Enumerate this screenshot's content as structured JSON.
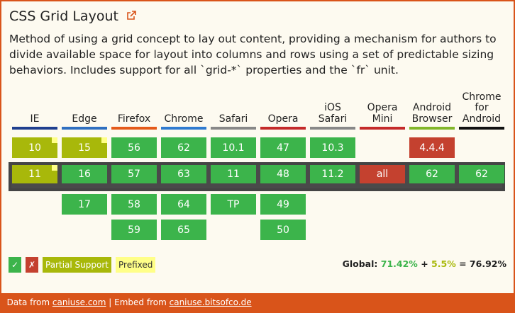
{
  "header": {
    "title": "CSS Grid Layout",
    "description": "Method of using a grid concept to lay out content, providing a mechanism for authors to divide available space for layout into columns and rows using a set of predictable sizing behaviors. Includes support for all `grid-*` properties and the `fr` unit."
  },
  "current_row": 1,
  "browsers": [
    {
      "name": [
        "IE"
      ],
      "color": "#1f3f8f",
      "cells": [
        {
          "text": "10",
          "color": "#a8b80a",
          "prefixed": true
        },
        {
          "text": "11",
          "color": "#a8b80a",
          "prefixed": true
        },
        null,
        null
      ]
    },
    {
      "name": [
        "Edge"
      ],
      "color": "#2f6fc0",
      "cells": [
        {
          "text": "15",
          "color": "#a8b80a",
          "prefixed": true
        },
        {
          "text": "16",
          "color": "#3cb44b"
        },
        {
          "text": "17",
          "color": "#3cb44b"
        },
        null
      ]
    },
    {
      "name": [
        "Firefox"
      ],
      "color": "#e45a1a",
      "cells": [
        {
          "text": "56",
          "color": "#3cb44b"
        },
        {
          "text": "57",
          "color": "#3cb44b"
        },
        {
          "text": "58",
          "color": "#3cb44b"
        },
        {
          "text": "59",
          "color": "#3cb44b"
        }
      ]
    },
    {
      "name": [
        "Chrome"
      ],
      "color": "#2f7bd0",
      "cells": [
        {
          "text": "62",
          "color": "#3cb44b"
        },
        {
          "text": "63",
          "color": "#3cb44b"
        },
        {
          "text": "64",
          "color": "#3cb44b"
        },
        {
          "text": "65",
          "color": "#3cb44b"
        }
      ]
    },
    {
      "name": [
        "Safari"
      ],
      "color": "#888888",
      "cells": [
        {
          "text": "10.1",
          "color": "#3cb44b"
        },
        {
          "text": "11",
          "color": "#3cb44b"
        },
        {
          "text": "TP",
          "color": "#3cb44b"
        },
        null
      ]
    },
    {
      "name": [
        "Opera"
      ],
      "color": "#c42a2a",
      "cells": [
        {
          "text": "47",
          "color": "#3cb44b"
        },
        {
          "text": "48",
          "color": "#3cb44b"
        },
        {
          "text": "49",
          "color": "#3cb44b"
        },
        {
          "text": "50",
          "color": "#3cb44b"
        }
      ]
    },
    {
      "name": [
        "iOS",
        "Safari"
      ],
      "color": "#888888",
      "cells": [
        {
          "text": "10.3",
          "color": "#3cb44b"
        },
        {
          "text": "11.2",
          "color": "#3cb44b"
        },
        null,
        null
      ]
    },
    {
      "name": [
        "Opera",
        "Mini"
      ],
      "color": "#c42a2a",
      "cells": [
        null,
        {
          "text": "all",
          "color": "#c4412f"
        },
        null,
        null
      ]
    },
    {
      "name": [
        "Android",
        "Browser"
      ],
      "color": "#82b62a",
      "cells": [
        {
          "text": "4.4.4",
          "color": "#c4412f"
        },
        {
          "text": "62",
          "color": "#3cb44b"
        },
        null,
        null
      ]
    },
    {
      "name": [
        "Chrome",
        "for",
        "Android"
      ],
      "color": "#111111",
      "cells": [
        null,
        {
          "text": "62",
          "color": "#3cb44b"
        },
        null,
        null
      ]
    }
  ],
  "legend": [
    {
      "text": "✓",
      "color": "#3cb44b",
      "text_color": "#ffffff"
    },
    {
      "text": "✗",
      "color": "#c4412f",
      "text_color": "#ffffff"
    },
    {
      "text": "Partial Support",
      "color": "#a8b80a",
      "text_color": "#ffffff"
    },
    {
      "text": "Prefixed",
      "color": "#ffff88",
      "text_color": "#333333"
    }
  ],
  "global": {
    "label": "Global:",
    "supported": "71.42%",
    "plus": "+",
    "partial": "5.5%",
    "equals": "=",
    "total": "76.92%"
  },
  "footer": {
    "data_from": "Data from",
    "data_link": "caniuse.com",
    "separator": "|",
    "embed_from": "Embed from",
    "embed_link": "caniuse.bitsofco.de"
  }
}
